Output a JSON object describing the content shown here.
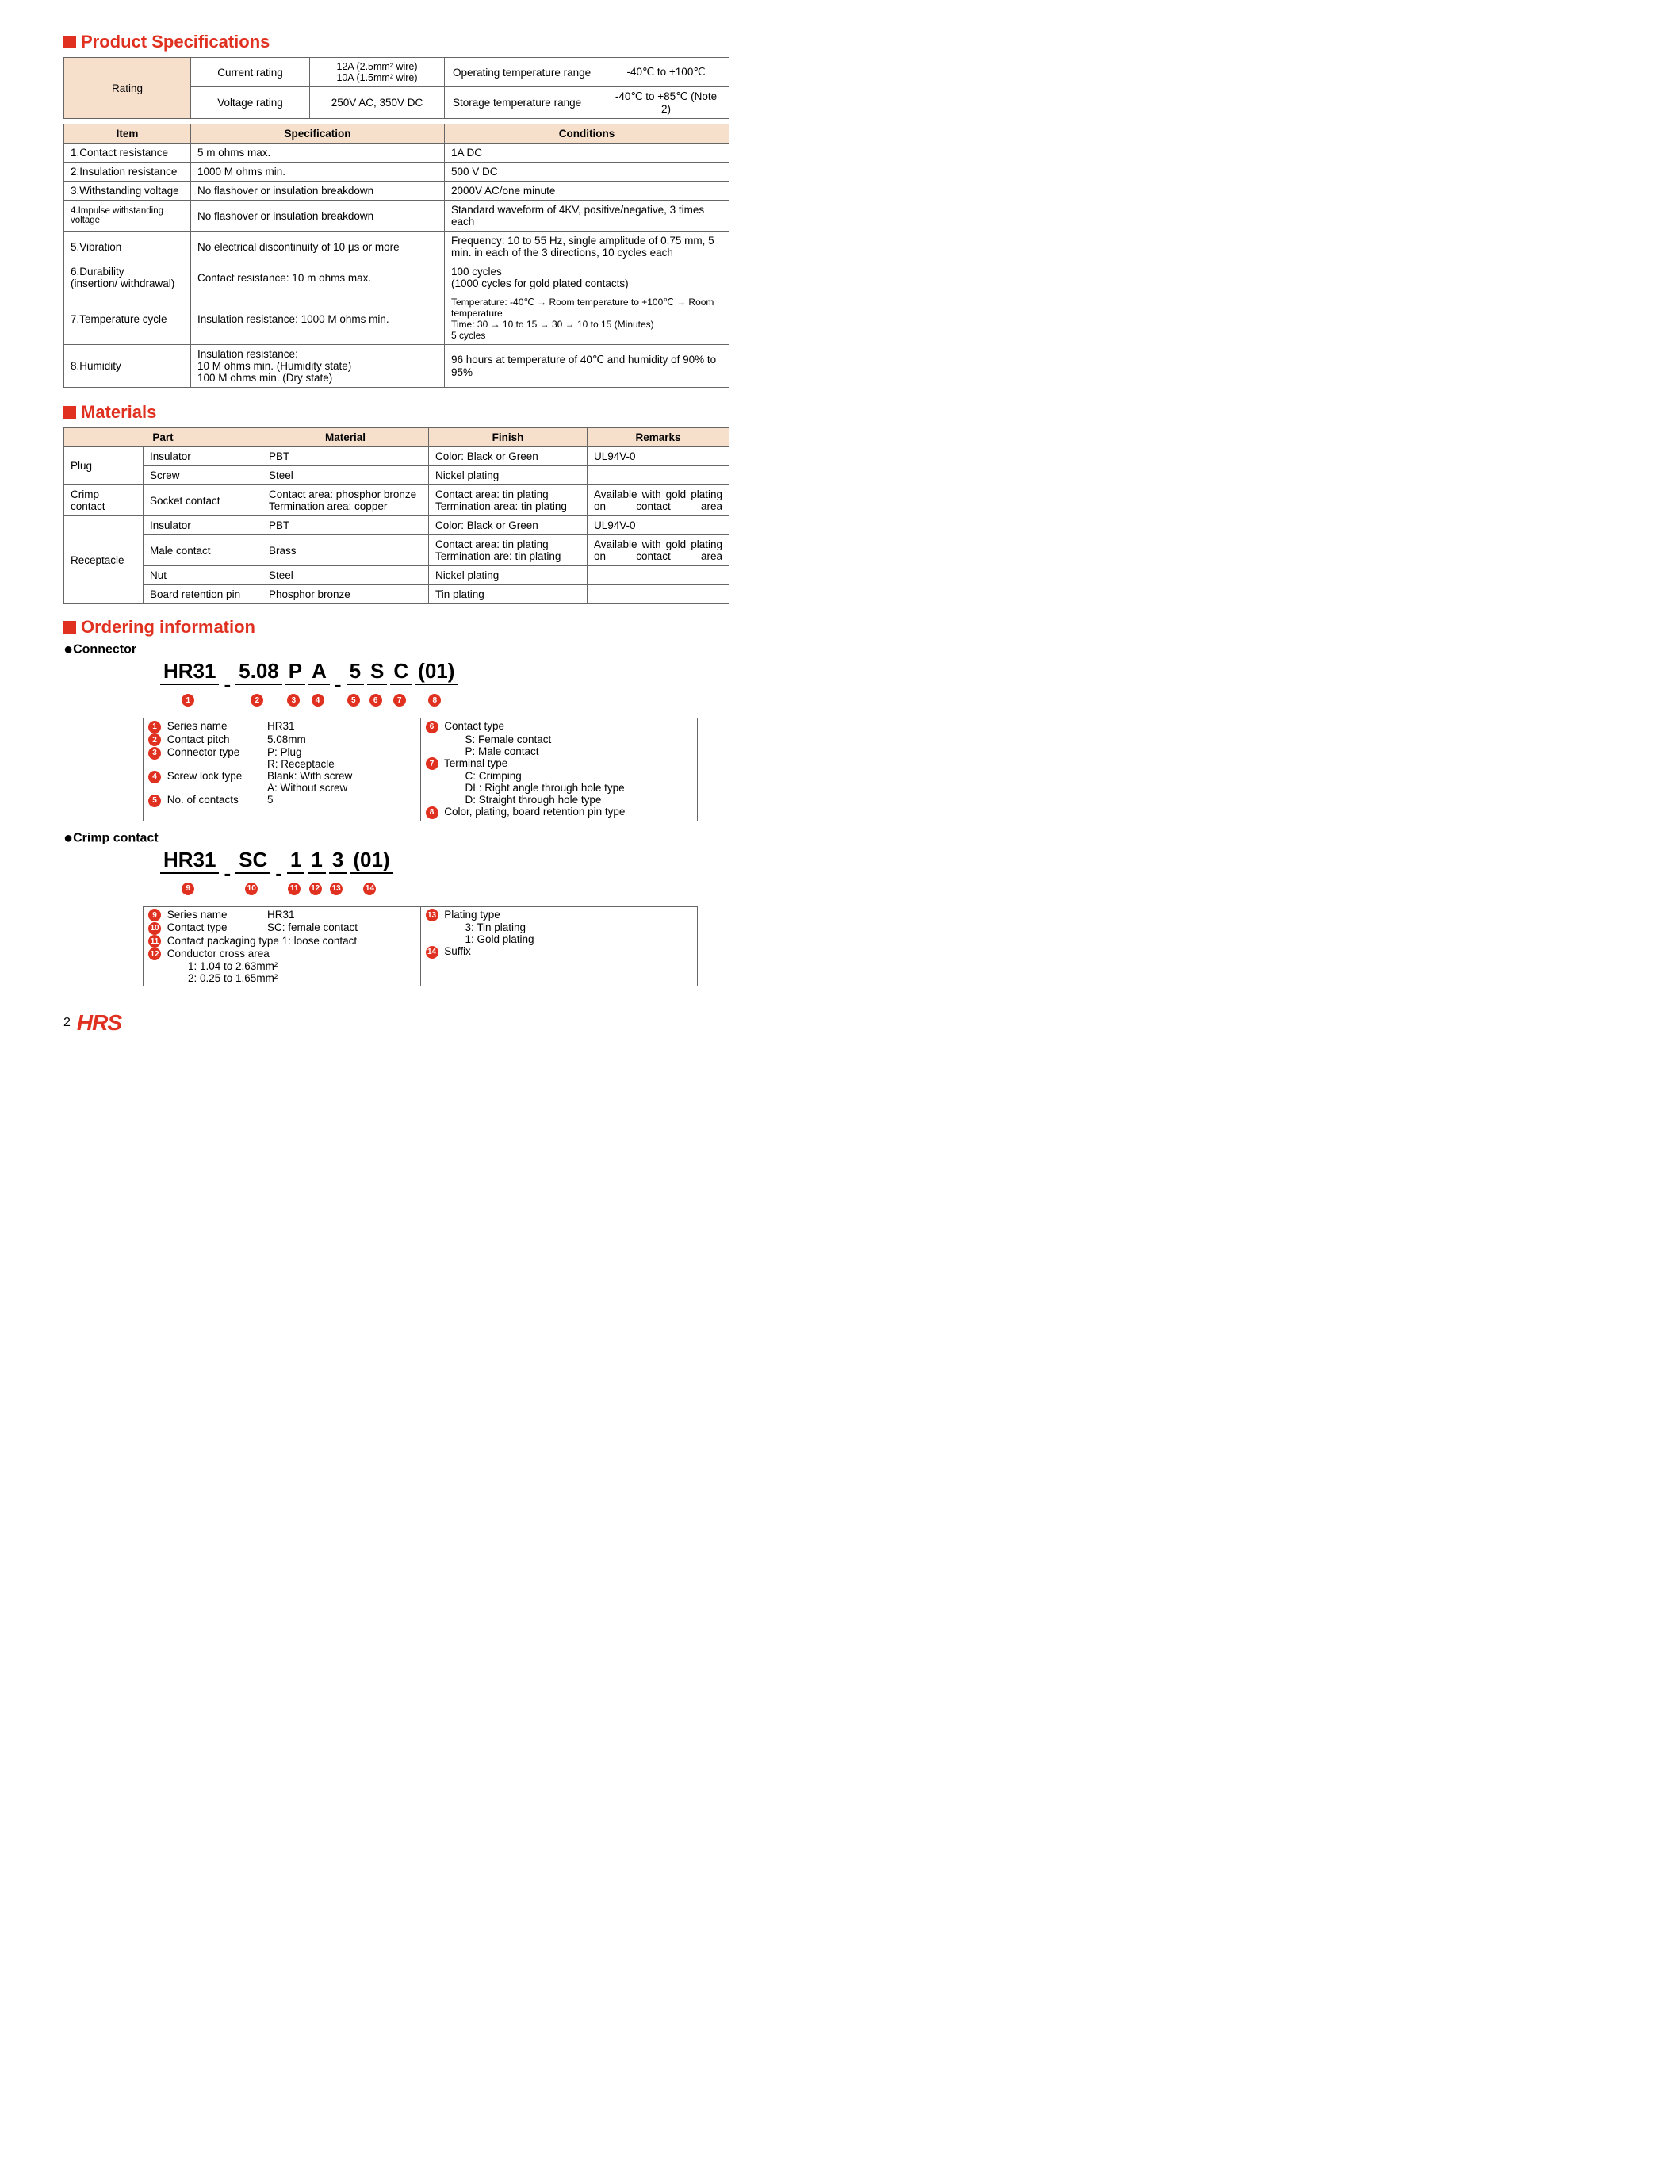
{
  "sections": {
    "spec_title": "Product Specifications",
    "materials_title": "Materials",
    "ordering_title": "Ordering information"
  },
  "rating": {
    "label": "Rating",
    "current_label": "Current rating",
    "current_val": "12A (2.5mm² wire)\n10A (1.5mm² wire)",
    "op_temp_label": "Operating temperature range",
    "op_temp_val": "-40℃ to +100℃",
    "voltage_label": "Voltage rating",
    "voltage_val": "250V AC, 350V DC",
    "storage_label": "Storage temperature range",
    "storage_val": "-40℃ to +85℃ (Note 2)"
  },
  "spec_headers": {
    "item": "Item",
    "spec": "Specification",
    "cond": "Conditions"
  },
  "specs": [
    {
      "item": "1.Contact resistance",
      "spec": "5 m ohms max.",
      "cond": "1A DC"
    },
    {
      "item": "2.Insulation resistance",
      "spec": "1000 M ohms min.",
      "cond": "500 V DC"
    },
    {
      "item": "3.Withstanding voltage",
      "spec": "No flashover or insulation breakdown",
      "cond": "2000V AC/one minute"
    },
    {
      "item": "4.Impulse withstanding voltage",
      "spec": "No flashover or insulation breakdown",
      "cond": "Standard waveform of 4KV, positive/negative, 3 times each"
    },
    {
      "item": "5.Vibration",
      "spec": "No electrical discontinuity of 10 μs or more",
      "cond": "Frequency: 10 to 55 Hz, single amplitude of 0.75 mm, 5 min. in each of the 3 directions, 10 cycles each"
    },
    {
      "item": "6.Durability\n  (insertion/ withdrawal)",
      "spec": "Contact resistance: 10 m ohms max.",
      "cond": "100 cycles\n(1000 cycles for gold plated contacts)"
    },
    {
      "item": "7.Temperature cycle",
      "spec": "Insulation resistance: 1000 M ohms min.",
      "cond": "Temperature: -40℃ → Room temperature to +100℃ → Room temperature\nTime: 30 → 10 to 15 → 30 → 10 to 15 (Minutes)\n 5 cycles"
    },
    {
      "item": "8.Humidity",
      "spec": "Insulation resistance:\n10 M ohms min. (Humidity state)\n100 M ohms min. (Dry state)",
      "cond": "96 hours at temperature of 40℃ and humidity of 90% to 95%"
    }
  ],
  "mat_headers": {
    "part": "Part",
    "material": "Material",
    "finish": "Finish",
    "remarks": "Remarks"
  },
  "mat": {
    "plug": "Plug",
    "plug_rows": [
      {
        "sub": "Insulator",
        "mat": "PBT",
        "fin": "Color: Black or Green",
        "rem": "UL94V-0"
      },
      {
        "sub": "Screw",
        "mat": "Steel",
        "fin": "Nickel plating",
        "rem": ""
      }
    ],
    "crimp": "Crimp contact",
    "crimp_rows": [
      {
        "sub": "Socket contact",
        "mat": "Contact area: phosphor bronze\nTermination area: copper",
        "fin": "Contact area: tin plating\nTermination area: tin plating",
        "rem": "Available with gold plating on contact area"
      }
    ],
    "recept": "Receptacle",
    "recept_rows": [
      {
        "sub": "Insulator",
        "mat": "PBT",
        "fin": "Color: Black or Green",
        "rem": "UL94V-0"
      },
      {
        "sub": "Male contact",
        "mat": "Brass",
        "fin": "Contact area: tin plating\nTermination are: tin plating",
        "rem": "Available with gold plating on contact area"
      },
      {
        "sub": "Nut",
        "mat": "Steel",
        "fin": "Nickel plating",
        "rem": ""
      },
      {
        "sub": "Board retention pin",
        "mat": "Phosphor bronze",
        "fin": "Tin plating",
        "rem": ""
      }
    ]
  },
  "ord": {
    "connector_label": "Connector",
    "crimp_label": "Crimp contact",
    "conn_code": [
      "HR31",
      "5.08",
      "P",
      "A",
      "5",
      "S",
      "C",
      "(01)"
    ],
    "conn_nums": [
      "❶",
      "❷",
      "❸",
      "❹",
      "❺",
      "❻",
      "❼",
      "❽"
    ],
    "crimp_code": [
      "HR31",
      "SC",
      "1",
      "1",
      "3",
      "(01)"
    ],
    "crimp_nums": [
      "❾",
      "❿",
      "⓫",
      "⓬",
      "⓭",
      "⓮"
    ],
    "conn_left": {
      "1": {
        "lbl": "Series name",
        "val": "HR31"
      },
      "2": {
        "lbl": "Contact pitch",
        "val": "5.08mm"
      },
      "3": {
        "lbl": "Connector type",
        "val": "P: Plug\nR: Receptacle"
      },
      "4": {
        "lbl": "Screw lock type",
        "val": "Blank: With screw\nA: Without screw"
      },
      "5": {
        "lbl": "No. of contacts",
        "val": "5"
      }
    },
    "conn_right": {
      "6": {
        "lbl": "Contact type",
        "val": "S: Female contact\nP: Male contact"
      },
      "7": {
        "lbl": "Terminal type",
        "val": "C: Crimping\nDL: Right angle through hole type\nD: Straight through hole type"
      },
      "8": {
        "lbl": "Color, plating, board retention pin type",
        "val": ""
      }
    },
    "crimp_left": {
      "9": {
        "lbl": "Series name",
        "val": "HR31"
      },
      "10": {
        "lbl": "Contact type",
        "val": "SC: female contact"
      },
      "11": {
        "lbl": "Contact packaging type 1: loose contact",
        "val": ""
      },
      "12": {
        "lbl": "Conductor cross area",
        "val": "1: 1.04 to 2.63mm²\n2: 0.25 to 1.65mm²"
      }
    },
    "crimp_right": {
      "13": {
        "lbl": "Plating type",
        "val": "3: Tin plating\n1: Gold plating"
      },
      "14": {
        "lbl": "Suffix",
        "val": ""
      }
    }
  },
  "footer": {
    "page": "2",
    "logo": "HRS"
  },
  "colors": {
    "accent": "#e03020",
    "header_bg": "#f6e0cc",
    "border": "#666666"
  }
}
